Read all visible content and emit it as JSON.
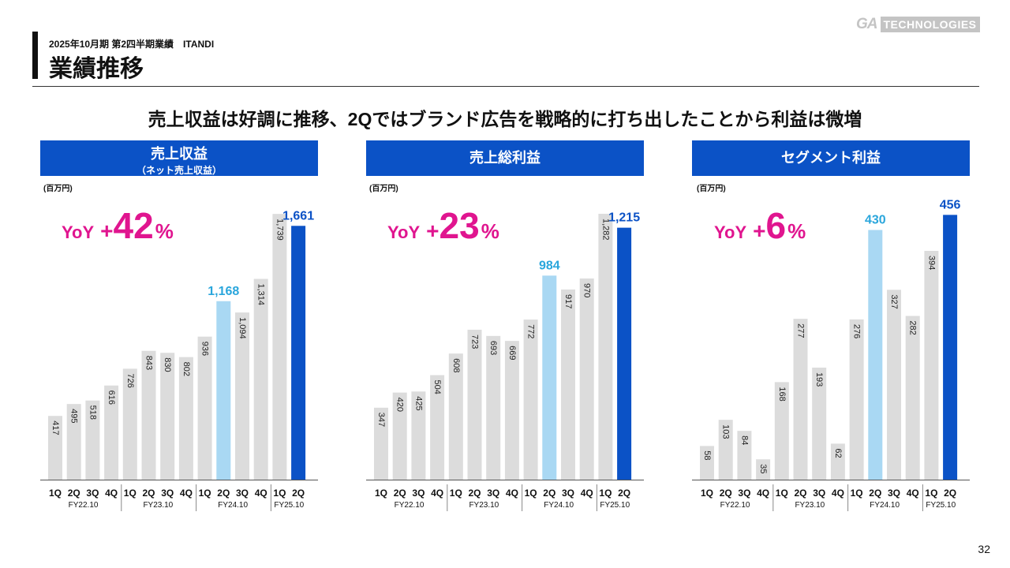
{
  "header": {
    "kicker": "2025年10月期 第2四半期業績　ITANDI",
    "title": "業績推移",
    "logo_ga": "GA",
    "logo_tech": "TECHNOLOGIES"
  },
  "headline": "売上収益は好調に推移、2Qではブランド広告を戦略的に打ち出したことから利益は微増",
  "panels": [
    {
      "title": "売上収益",
      "subtitle": "（ネット売上収益）",
      "unit": "(百万円)",
      "yoy_label": "YoY",
      "yoy_plus": "+",
      "yoy_value": "42",
      "yoy_pct": "%"
    },
    {
      "title": "売上総利益",
      "subtitle": "",
      "unit": "(百万円)",
      "yoy_label": "YoY",
      "yoy_plus": "+",
      "yoy_value": "23",
      "yoy_pct": "%"
    },
    {
      "title": "セグメント利益",
      "subtitle": "",
      "unit": "(百万円)",
      "yoy_label": "YoY",
      "yoy_plus": "+",
      "yoy_value": "6",
      "yoy_pct": "%"
    }
  ],
  "colors": {
    "header_bg": "#0b52c6",
    "bar_gray": "#dcdcdc",
    "bar_light_blue": "#a9d8f3",
    "bar_dark_blue": "#0b52c6",
    "label_light_blue": "#2aa6dc",
    "label_dark_blue": "#0b52c6",
    "yoy_magenta": "#e0158f"
  },
  "chart_data": [
    {
      "type": "bar",
      "title": "売上収益",
      "categories": [
        "1Q",
        "2Q",
        "3Q",
        "4Q",
        "1Q",
        "2Q",
        "3Q",
        "4Q",
        "1Q",
        "2Q",
        "3Q",
        "4Q",
        "1Q",
        "2Q"
      ],
      "groups": [
        {
          "label": "FY22.10",
          "count": 4
        },
        {
          "label": "FY23.10",
          "count": 4
        },
        {
          "label": "FY24.10",
          "count": 4
        },
        {
          "label": "FY25.10",
          "count": 2
        }
      ],
      "values": [
        417,
        495,
        518,
        616,
        726,
        843,
        830,
        802,
        936,
        1168,
        1094,
        1314,
        1739,
        1661
      ],
      "labels": [
        "417",
        "495",
        "518",
        "616",
        "726",
        "843",
        "830",
        "802",
        "936",
        "1,168",
        "1,094",
        "1,314",
        "1,739",
        "1,661"
      ],
      "highlights": {
        "9": "light",
        "13": "dark"
      },
      "ylim": [
        0,
        1900
      ]
    },
    {
      "type": "bar",
      "title": "売上総利益",
      "categories": [
        "1Q",
        "2Q",
        "3Q",
        "4Q",
        "1Q",
        "2Q",
        "3Q",
        "4Q",
        "1Q",
        "2Q",
        "3Q",
        "4Q",
        "1Q",
        "2Q"
      ],
      "groups": [
        {
          "label": "FY22.10",
          "count": 4
        },
        {
          "label": "FY23.10",
          "count": 4
        },
        {
          "label": "FY24.10",
          "count": 4
        },
        {
          "label": "FY25.10",
          "count": 2
        }
      ],
      "values": [
        347,
        420,
        425,
        504,
        608,
        723,
        693,
        669,
        772,
        984,
        917,
        970,
        1282,
        1215
      ],
      "labels": [
        "347",
        "420",
        "425",
        "504",
        "608",
        "723",
        "693",
        "669",
        "772",
        "984",
        "917",
        "970",
        "1,282",
        "1,215"
      ],
      "highlights": {
        "9": "light",
        "13": "dark"
      },
      "ylim": [
        0,
        1400
      ]
    },
    {
      "type": "bar",
      "title": "セグメント利益",
      "categories": [
        "1Q",
        "2Q",
        "3Q",
        "4Q",
        "1Q",
        "2Q",
        "3Q",
        "4Q",
        "1Q",
        "2Q",
        "3Q",
        "4Q",
        "1Q",
        "2Q"
      ],
      "groups": [
        {
          "label": "FY22.10",
          "count": 4
        },
        {
          "label": "FY23.10",
          "count": 4
        },
        {
          "label": "FY24.10",
          "count": 4
        },
        {
          "label": "FY25.10",
          "count": 2
        }
      ],
      "values": [
        58,
        103,
        84,
        35,
        168,
        277,
        193,
        62,
        276,
        430,
        327,
        282,
        394,
        456
      ],
      "labels": [
        "58",
        "103",
        "84",
        "35",
        "168",
        "277",
        "193",
        "62",
        "276",
        "430",
        "327",
        "282",
        "394",
        "456"
      ],
      "highlights": {
        "9": "light",
        "13": "dark"
      },
      "ylim": [
        0,
        500
      ]
    }
  ],
  "page_number": "32"
}
